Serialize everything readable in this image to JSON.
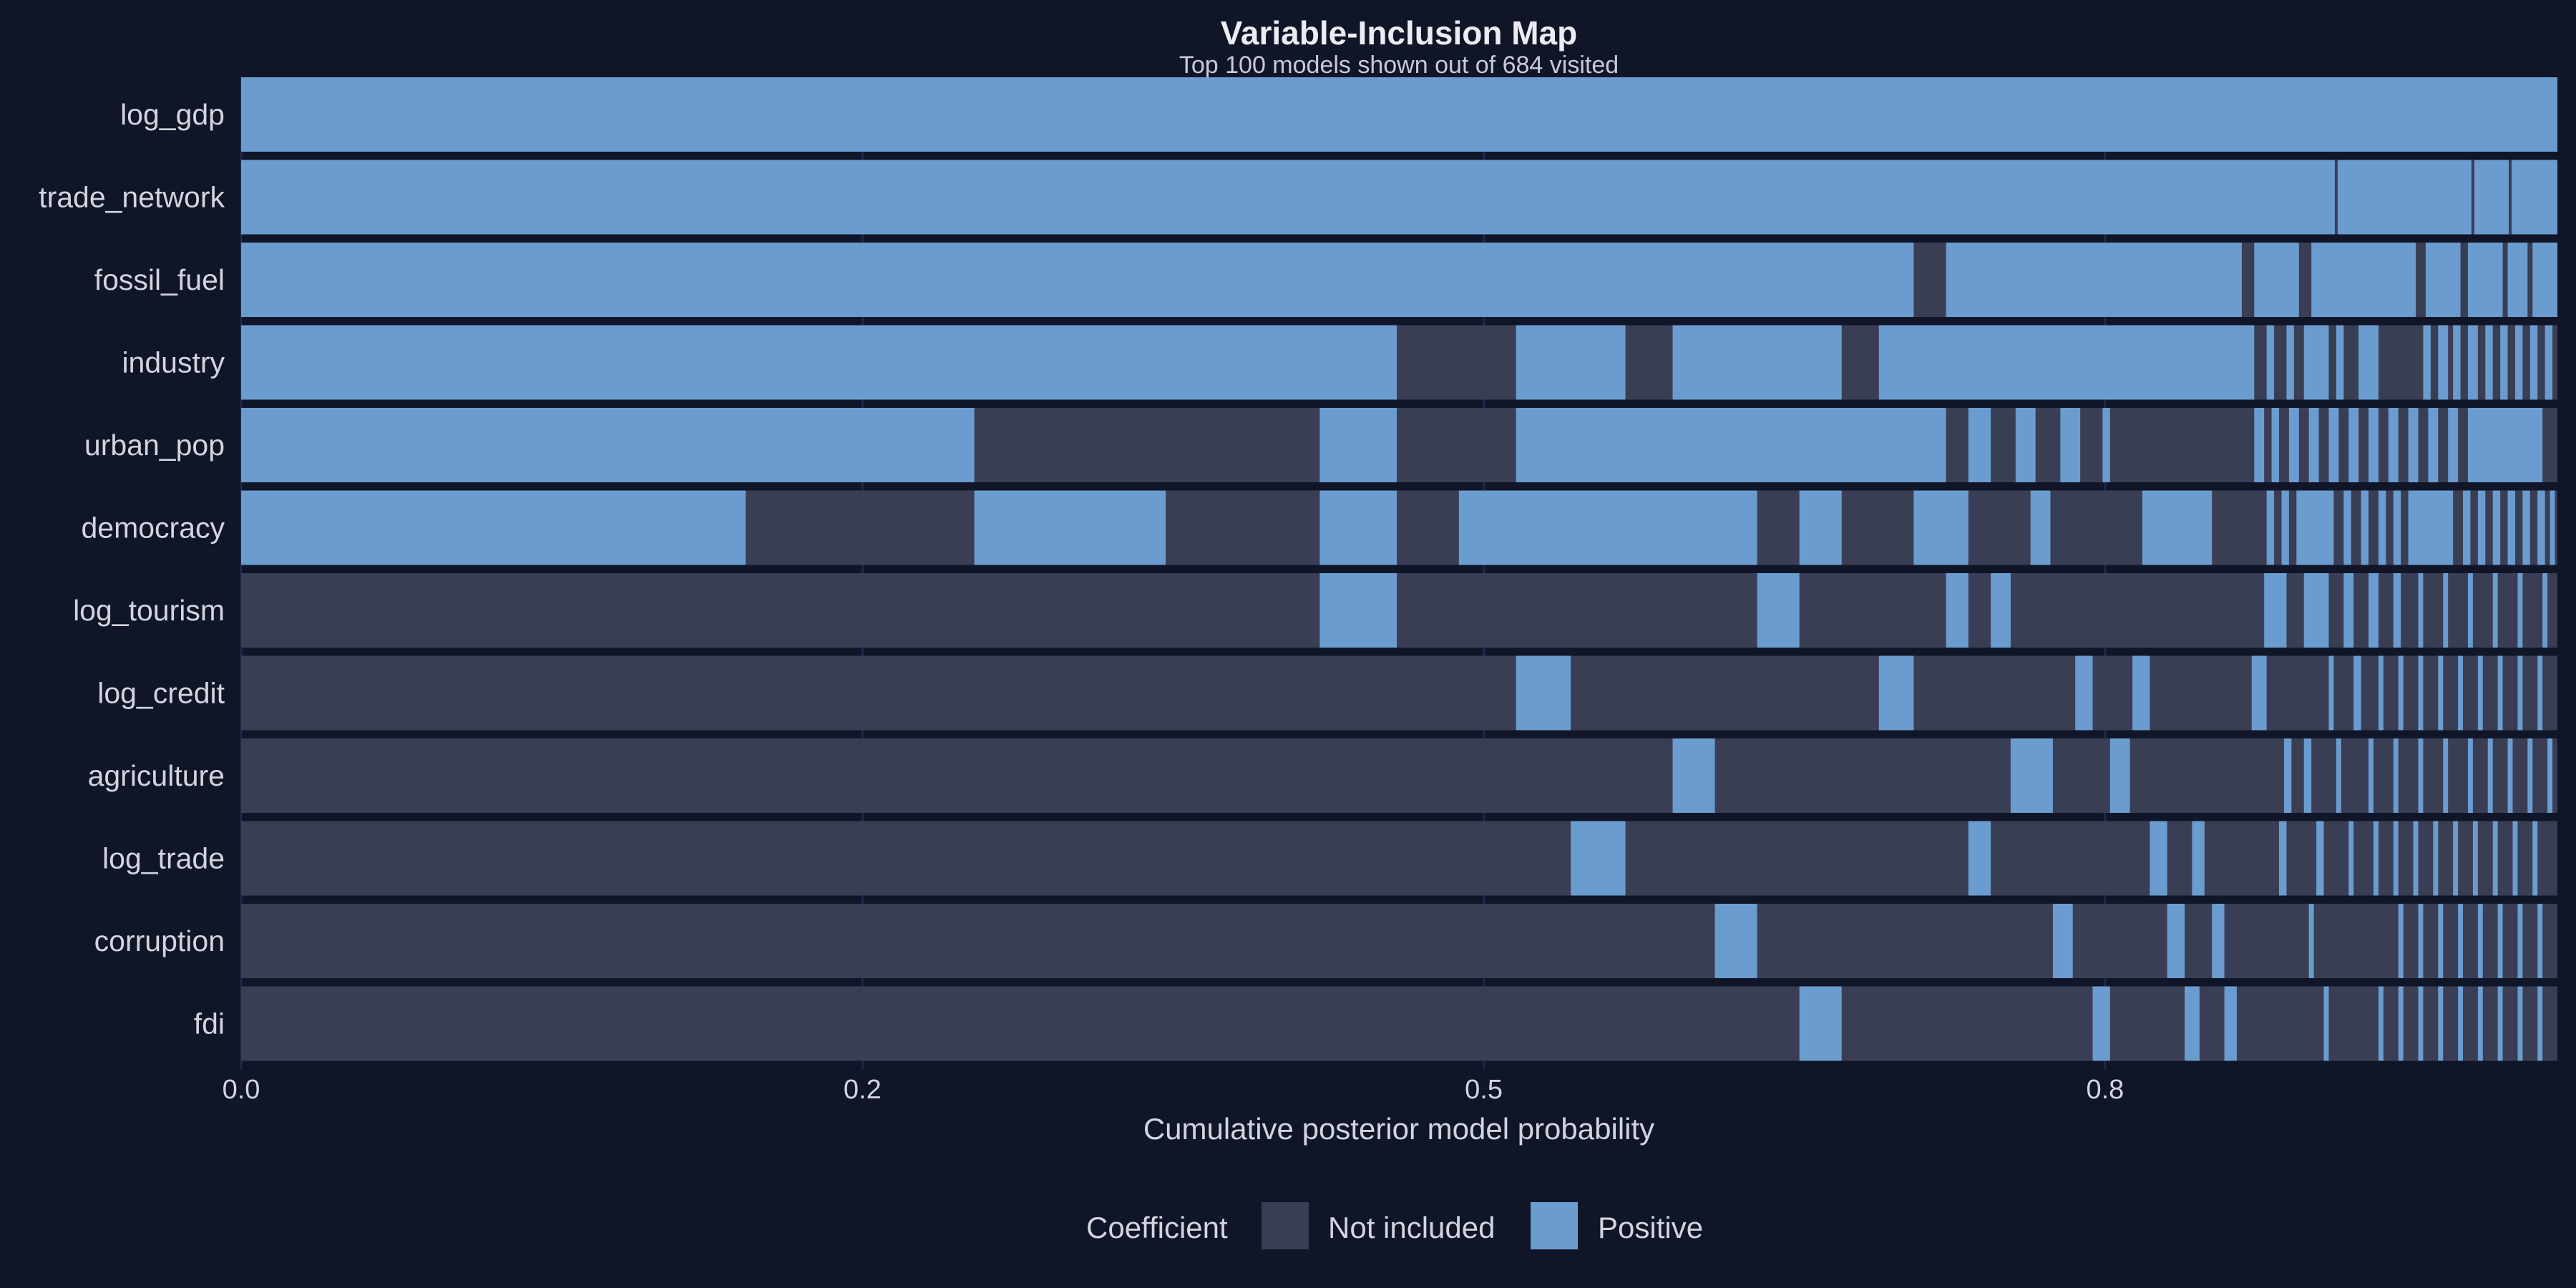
{
  "chart_data": {
    "type": "heatmap",
    "title": "Variable-Inclusion Map",
    "subtitle": "Top 100 models shown out of 684 visited",
    "xlabel": "Cumulative posterior model probability",
    "ylabel": "",
    "xlim": [
      0,
      0.932
    ],
    "x_ticks": [
      {
        "value": 0.0,
        "label": "0.0"
      },
      {
        "value": 0.25,
        "label": "0.2"
      },
      {
        "value": 0.5,
        "label": "0.5"
      },
      {
        "value": 0.75,
        "label": "0.8"
      }
    ],
    "grid": true,
    "legend": {
      "title": "Coefficient",
      "placement": "bottom",
      "entries": [
        {
          "key": "not_included",
          "label": "Not included"
        },
        {
          "key": "positive",
          "label": "Positive"
        }
      ]
    },
    "colors": {
      "background": "#101628",
      "not_included": "#3a3e54",
      "positive": "#6b9ccf",
      "text": "#d2d4de",
      "grid": "#1c2a4a"
    },
    "variables": [
      "log_gdp",
      "trade_network",
      "fossil_fuel",
      "industry",
      "urban_pop",
      "democracy",
      "log_tourism",
      "log_credit",
      "agriculture",
      "log_trade",
      "corruption",
      "fdi"
    ],
    "inclusion_segments": {
      "log_gdp": [
        [
          0.0,
          0.932
        ]
      ],
      "trade_network": [
        [
          0.0,
          0.843
        ],
        [
          0.843,
          0.898
        ],
        [
          0.898,
          0.913
        ],
        [
          0.913,
          0.932
        ]
      ],
      "fossil_fuel": [
        [
          0.0,
          0.673
        ],
        [
          0.686,
          0.805
        ],
        [
          0.81,
          0.828
        ],
        [
          0.833,
          0.875
        ],
        [
          0.879,
          0.893
        ],
        [
          0.896,
          0.91
        ],
        [
          0.912,
          0.92
        ],
        [
          0.922,
          0.932
        ]
      ],
      "industry": [
        [
          0.0,
          0.465
        ],
        [
          0.513,
          0.557
        ],
        [
          0.576,
          0.644
        ],
        [
          0.659,
          0.81
        ],
        [
          0.815,
          0.818
        ],
        [
          0.823,
          0.826
        ],
        [
          0.83,
          0.84
        ],
        [
          0.843,
          0.846
        ],
        [
          0.852,
          0.86
        ],
        [
          0.878,
          0.881
        ],
        [
          0.884,
          0.888
        ],
        [
          0.89,
          0.893
        ],
        [
          0.896,
          0.9
        ],
        [
          0.903,
          0.906
        ],
        [
          0.909,
          0.912
        ],
        [
          0.915,
          0.918
        ],
        [
          0.921,
          0.924
        ],
        [
          0.927,
          0.93
        ]
      ],
      "urban_pop": [
        [
          0.0,
          0.295
        ],
        [
          0.434,
          0.465
        ],
        [
          0.513,
          0.686
        ],
        [
          0.695,
          0.704
        ],
        [
          0.714,
          0.722
        ],
        [
          0.732,
          0.74
        ],
        [
          0.749,
          0.752
        ],
        [
          0.81,
          0.814
        ],
        [
          0.817,
          0.82
        ],
        [
          0.824,
          0.828
        ],
        [
          0.832,
          0.836
        ],
        [
          0.84,
          0.844
        ],
        [
          0.848,
          0.852
        ],
        [
          0.856,
          0.86
        ],
        [
          0.864,
          0.868
        ],
        [
          0.872,
          0.876
        ],
        [
          0.88,
          0.884
        ],
        [
          0.888,
          0.892
        ],
        [
          0.896,
          0.926
        ]
      ],
      "democracy": [
        [
          0.0,
          0.203
        ],
        [
          0.295,
          0.372
        ],
        [
          0.434,
          0.465
        ],
        [
          0.49,
          0.61
        ],
        [
          0.627,
          0.644
        ],
        [
          0.673,
          0.695
        ],
        [
          0.72,
          0.728
        ],
        [
          0.765,
          0.793
        ],
        [
          0.815,
          0.818
        ],
        [
          0.821,
          0.824
        ],
        [
          0.827,
          0.842
        ],
        [
          0.846,
          0.849
        ],
        [
          0.853,
          0.856
        ],
        [
          0.86,
          0.863
        ],
        [
          0.866,
          0.869
        ],
        [
          0.872,
          0.89
        ],
        [
          0.894,
          0.897
        ],
        [
          0.9,
          0.903
        ],
        [
          0.906,
          0.909
        ],
        [
          0.912,
          0.915
        ],
        [
          0.918,
          0.921
        ],
        [
          0.924,
          0.927
        ],
        [
          0.929,
          0.931
        ]
      ],
      "log_tourism": [
        [
          0.434,
          0.465
        ],
        [
          0.61,
          0.627
        ],
        [
          0.686,
          0.695
        ],
        [
          0.704,
          0.712
        ],
        [
          0.814,
          0.823
        ],
        [
          0.83,
          0.84
        ],
        [
          0.846,
          0.85
        ],
        [
          0.856,
          0.86
        ],
        [
          0.866,
          0.869
        ],
        [
          0.876,
          0.878
        ],
        [
          0.886,
          0.888
        ],
        [
          0.896,
          0.898
        ],
        [
          0.906,
          0.908
        ],
        [
          0.916,
          0.918
        ],
        [
          0.926,
          0.928
        ]
      ],
      "log_credit": [
        [
          0.513,
          0.535
        ],
        [
          0.659,
          0.673
        ],
        [
          0.738,
          0.745
        ],
        [
          0.761,
          0.768
        ],
        [
          0.809,
          0.815
        ],
        [
          0.84,
          0.842
        ],
        [
          0.85,
          0.853
        ],
        [
          0.86,
          0.862
        ],
        [
          0.868,
          0.87
        ],
        [
          0.876,
          0.878
        ],
        [
          0.884,
          0.886
        ],
        [
          0.892,
          0.894
        ],
        [
          0.9,
          0.902
        ],
        [
          0.908,
          0.91
        ],
        [
          0.916,
          0.918
        ],
        [
          0.924,
          0.926
        ]
      ],
      "agriculture": [
        [
          0.576,
          0.593
        ],
        [
          0.712,
          0.729
        ],
        [
          0.752,
          0.76
        ],
        [
          0.822,
          0.825
        ],
        [
          0.83,
          0.833
        ],
        [
          0.843,
          0.845
        ],
        [
          0.856,
          0.858
        ],
        [
          0.866,
          0.868
        ],
        [
          0.876,
          0.878
        ],
        [
          0.886,
          0.888
        ],
        [
          0.896,
          0.898
        ],
        [
          0.904,
          0.906
        ],
        [
          0.912,
          0.914
        ],
        [
          0.92,
          0.922
        ],
        [
          0.928,
          0.93
        ]
      ],
      "log_trade": [
        [
          0.535,
          0.557
        ],
        [
          0.695,
          0.704
        ],
        [
          0.768,
          0.775
        ],
        [
          0.785,
          0.79
        ],
        [
          0.82,
          0.823
        ],
        [
          0.835,
          0.838
        ],
        [
          0.848,
          0.85
        ],
        [
          0.858,
          0.86
        ],
        [
          0.866,
          0.868
        ],
        [
          0.874,
          0.876
        ],
        [
          0.882,
          0.884
        ],
        [
          0.89,
          0.892
        ],
        [
          0.898,
          0.9
        ],
        [
          0.906,
          0.908
        ],
        [
          0.914,
          0.916
        ],
        [
          0.922,
          0.924
        ]
      ],
      "corruption": [
        [
          0.593,
          0.61
        ],
        [
          0.729,
          0.737
        ],
        [
          0.775,
          0.782
        ],
        [
          0.793,
          0.798
        ],
        [
          0.832,
          0.834
        ],
        [
          0.868,
          0.87
        ],
        [
          0.876,
          0.878
        ],
        [
          0.884,
          0.886
        ],
        [
          0.892,
          0.894
        ],
        [
          0.9,
          0.902
        ],
        [
          0.908,
          0.91
        ],
        [
          0.916,
          0.918
        ],
        [
          0.924,
          0.926
        ]
      ],
      "fdi": [
        [
          0.627,
          0.644
        ],
        [
          0.745,
          0.752
        ],
        [
          0.782,
          0.788
        ],
        [
          0.798,
          0.803
        ],
        [
          0.838,
          0.84
        ],
        [
          0.86,
          0.862
        ],
        [
          0.868,
          0.87
        ],
        [
          0.876,
          0.878
        ],
        [
          0.884,
          0.886
        ],
        [
          0.892,
          0.894
        ],
        [
          0.9,
          0.902
        ],
        [
          0.908,
          0.91
        ],
        [
          0.916,
          0.918
        ],
        [
          0.924,
          0.926
        ]
      ]
    }
  }
}
